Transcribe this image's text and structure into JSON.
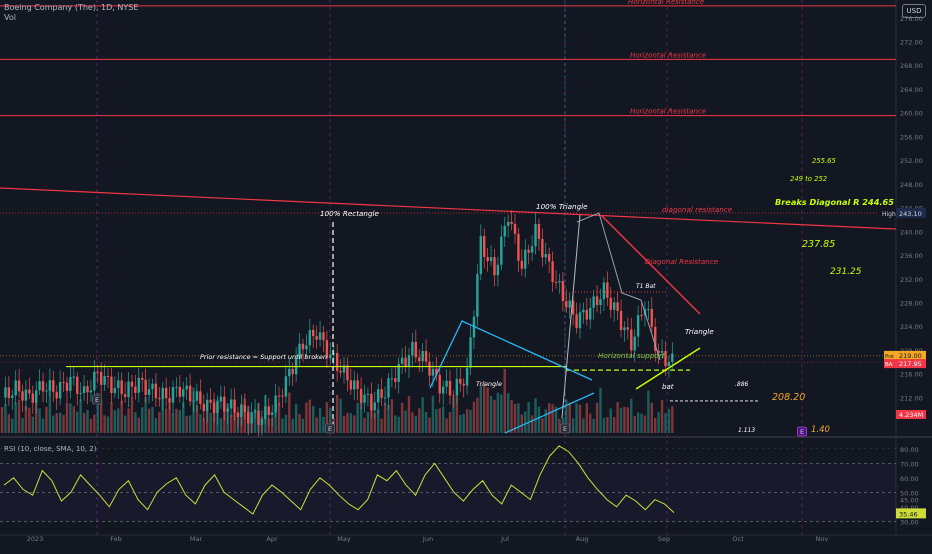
{
  "header": {
    "symbol": "Boeing Company (The), 1D, NYSE",
    "volume_label": "Vol",
    "currency_label": "USD"
  },
  "chart_data": [
    {
      "type": "candlestick",
      "title": "Boeing Company (The), 1D, NYSE",
      "y_axis_ticks": [
        276,
        272,
        268,
        264,
        260,
        256,
        252,
        248,
        244,
        240,
        236,
        232,
        228,
        224,
        220,
        216,
        212
      ],
      "ylim": [
        206,
        279
      ],
      "x_axis_labels": [
        "2023",
        "Feb",
        "Mar",
        "Apr",
        "May",
        "Jun",
        "Jul",
        "Aug",
        "Sep",
        "Oct",
        "Nov"
      ],
      "grid": false,
      "price_badges": {
        "high": {
          "label": "High",
          "value": "243.10"
        },
        "pre": {
          "label": "Pre",
          "value": "219.00"
        },
        "last": {
          "label": "BA",
          "value": "217.95"
        },
        "volume": {
          "value": "4.234M"
        }
      },
      "levels": {
        "horizontal_resistance": [
          278.0,
          269.0,
          259.5
        ],
        "support": 217.2,
        "dashed_support": 216.6,
        "bat_886": 211.4
      },
      "close_series": [
        [
          0,
          212.0
        ],
        [
          4,
          213.5
        ],
        [
          8,
          212.0
        ],
        [
          12,
          214.0
        ],
        [
          16,
          213.0
        ],
        [
          20,
          215.0
        ],
        [
          24,
          212.5
        ],
        [
          28,
          216.0
        ],
        [
          32,
          214.0
        ],
        [
          36,
          213.0
        ],
        [
          40,
          214.5
        ],
        [
          44,
          213.0
        ],
        [
          48,
          212.0
        ],
        [
          52,
          213.5
        ],
        [
          56,
          212.0
        ],
        [
          60,
          210.5
        ],
        [
          64,
          211.0
        ],
        [
          68,
          210.0
        ],
        [
          72,
          209.0
        ],
        [
          76,
          208.5
        ],
        [
          80,
          211.0
        ],
        [
          84,
          216.0
        ],
        [
          88,
          221.0
        ],
        [
          92,
          223.0
        ],
        [
          96,
          219.0
        ],
        [
          100,
          216.0
        ],
        [
          104,
          213.0
        ],
        [
          108,
          211.0
        ],
        [
          112,
          213.0
        ],
        [
          116,
          217.0
        ],
        [
          120,
          220.0
        ],
        [
          124,
          218.0
        ],
        [
          128,
          214.0
        ],
        [
          132,
          213.0
        ],
        [
          136,
          216.0
        ],
        [
          140,
          238.0
        ],
        [
          144,
          233.0
        ],
        [
          148,
          243.0
        ],
        [
          152,
          234.0
        ],
        [
          156,
          240.0
        ],
        [
          160,
          234.0
        ],
        [
          164,
          229.0
        ],
        [
          168,
          225.0
        ],
        [
          172,
          227.0
        ],
        [
          176,
          230.0
        ],
        [
          180,
          226.0
        ],
        [
          184,
          221.0
        ],
        [
          188,
          228.0
        ],
        [
          192,
          219.0
        ],
        [
          196,
          218.0
        ]
      ],
      "annotations": [
        {
          "text": "Horizontal Resistance",
          "price": 278.0
        },
        {
          "text": "Horizontal Resistance",
          "price": 269.0
        },
        {
          "text": "Horizontal Resistance",
          "price": 259.5
        },
        {
          "text": "100% Rectangle"
        },
        {
          "text": "100% Triangle"
        },
        {
          "text": "diagonal resistance"
        },
        {
          "text": "Diagonal Resistance"
        },
        {
          "text": "T1 Bat"
        },
        {
          "text": "Triangle"
        },
        {
          "text": "Triangle"
        },
        {
          "text": "Prior resistance = Support until broken"
        },
        {
          "text": "Horizontal support"
        },
        {
          "text": "bat"
        },
        {
          "text": ".886"
        },
        {
          "text": "1.113"
        },
        {
          "text": "255.65"
        },
        {
          "text": "249 to 252"
        },
        {
          "text": "Breaks Diagonal R 244.65"
        },
        {
          "text": "237.85"
        },
        {
          "text": "231.25"
        },
        {
          "text": "208.20"
        },
        {
          "text": "1.40"
        }
      ],
      "event_markers": [
        "E",
        "E",
        "E",
        "E"
      ],
      "colors": {
        "up": "#26a69a",
        "down": "#ef5350",
        "annotation_red": "#f23645",
        "annotation_green": "#8bc34a",
        "triangle_blue": "#29b6f6",
        "yellow_green": "#c6ff00",
        "orange": "#f5a623"
      }
    },
    {
      "type": "line",
      "title": "RSI (10, close, SMA, 10, 2)",
      "y_axis_ticks": [
        80,
        70,
        60,
        50,
        45,
        40,
        30
      ],
      "ylim": [
        24,
        84
      ],
      "last_value": "35.46",
      "series": [
        {
          "values": [
            55,
            60,
            52,
            48,
            65,
            58,
            44,
            50,
            62,
            55,
            48,
            40,
            52,
            58,
            45,
            38,
            50,
            56,
            60,
            48,
            42,
            55,
            62,
            50,
            45,
            40,
            35,
            48,
            55,
            50,
            44,
            38,
            52,
            60,
            55,
            48,
            42,
            38,
            45,
            62,
            58,
            65,
            55,
            48,
            62,
            70,
            60,
            50,
            44,
            52,
            58,
            48,
            42,
            55,
            50,
            45,
            62,
            75,
            82,
            78,
            70,
            60,
            52,
            45,
            40,
            48,
            44,
            38,
            45,
            42,
            36
          ]
        }
      ]
    }
  ]
}
